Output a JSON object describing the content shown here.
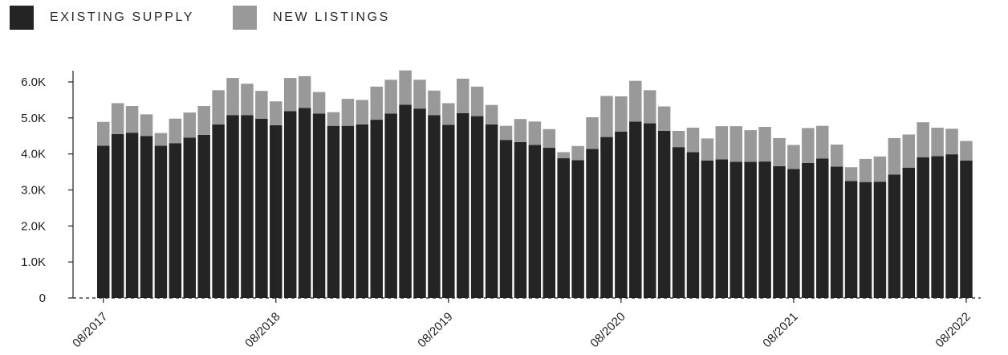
{
  "colors": {
    "existing": "#242424",
    "new": "#999999",
    "axis": "#1f1f1f"
  },
  "legend": [
    {
      "label": "EXISTING SUPPLY",
      "color": "#242424"
    },
    {
      "label": "NEW LISTINGS",
      "color": "#999999"
    }
  ],
  "chart_data": {
    "type": "bar",
    "stacked": true,
    "title": "",
    "xlabel": "",
    "ylabel": "",
    "ylim": [
      0,
      6000
    ],
    "y_ticks": [
      0,
      1000,
      2000,
      3000,
      4000,
      5000,
      6000
    ],
    "y_tick_labels": [
      "0",
      "1.0K",
      "2.0K",
      "3.0K",
      "4.0K",
      "5.0K",
      "6.0K"
    ],
    "x_tick_labels": [
      {
        "label": "08/2017",
        "index": 0
      },
      {
        "label": "08/2018",
        "index": 12
      },
      {
        "label": "08/2019",
        "index": 24
      },
      {
        "label": "08/2020",
        "index": 36
      },
      {
        "label": "08/2021",
        "index": 48
      },
      {
        "label": "08/2022",
        "index": 60
      }
    ],
    "grid": false,
    "legend_position": "top-left",
    "series": [
      {
        "name": "EXISTING SUPPLY",
        "values": [
          4230,
          4550,
          4590,
          4500,
          4230,
          4300,
          4450,
          4530,
          4820,
          5080,
          5080,
          4980,
          4800,
          5190,
          5280,
          5120,
          4780,
          4780,
          4820,
          4950,
          5120,
          5370,
          5260,
          5080,
          4810,
          5130,
          5050,
          4820,
          4390,
          4330,
          4250,
          4170,
          3880,
          3830,
          4140,
          4470,
          4620,
          4900,
          4850,
          4640,
          4190,
          4050,
          3820,
          3850,
          3780,
          3780,
          3790,
          3660,
          3580,
          3750,
          3870,
          3650,
          3250,
          3220,
          3230,
          3430,
          3620,
          3910,
          3940,
          3990,
          3820
        ]
      },
      {
        "name": "NEW LISTINGS",
        "values": [
          660,
          860,
          740,
          600,
          350,
          680,
          700,
          800,
          950,
          1030,
          870,
          770,
          660,
          920,
          880,
          600,
          380,
          750,
          680,
          920,
          940,
          950,
          800,
          680,
          600,
          960,
          820,
          540,
          390,
          640,
          650,
          520,
          170,
          390,
          880,
          1140,
          980,
          1130,
          920,
          680,
          450,
          680,
          610,
          920,
          990,
          880,
          960,
          780,
          670,
          970,
          910,
          610,
          380,
          640,
          700,
          1010,
          920,
          970,
          790,
          710,
          540
        ]
      }
    ]
  }
}
